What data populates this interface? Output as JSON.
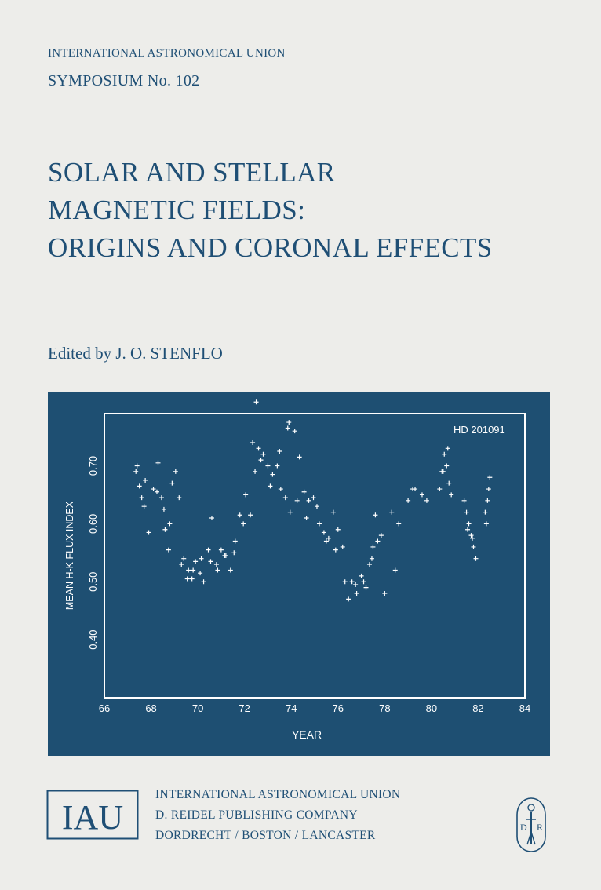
{
  "cover": {
    "series": "INTERNATIONAL ASTRONOMICAL UNION",
    "symposium": "SYMPOSIUM No. 102",
    "title_lines": [
      "SOLAR AND STELLAR",
      "MAGNETIC FIELDS:",
      "ORIGINS AND CORONAL EFFECTS"
    ],
    "editor": "Edited by J. O. STENFLO"
  },
  "publisher": {
    "lines": [
      "INTERNATIONAL ASTRONOMICAL UNION",
      "D. REIDEL PUBLISHING COMPANY",
      "DORDRECHT / BOSTON / LANCASTER"
    ],
    "iau_logo_text": "IAU",
    "reidel_logo_letters": [
      "D",
      "R"
    ]
  },
  "colors": {
    "text": "#1f4f75",
    "panel": "#1e4f72",
    "background": "#ededea",
    "plot_ink": "#ffffff"
  },
  "chart_data": {
    "type": "scatter",
    "annotation": "HD 201091",
    "xlabel": "YEAR",
    "ylabel": "MEAN H-K FLUX INDEX",
    "xlim": [
      66,
      84
    ],
    "ylim": [
      0.3,
      0.79
    ],
    "xticks": [
      "66",
      "68",
      "70",
      "72",
      "74",
      "76",
      "78",
      "80",
      "82",
      "84"
    ],
    "yticks": [
      "0.40",
      "0.50",
      "0.60",
      "0.70"
    ],
    "grid": false,
    "marker": "plus",
    "x": [
      67.35,
      67.5,
      67.6,
      67.75,
      67.9,
      68.1,
      68.3,
      68.45,
      68.6,
      68.75,
      68.9,
      69.05,
      69.2,
      69.4,
      69.6,
      69.75,
      69.9,
      70.1,
      70.25,
      70.45,
      70.6,
      70.8,
      71.0,
      71.2,
      71.4,
      71.6,
      71.8,
      72.05,
      72.25,
      72.45,
      72.6,
      72.8,
      73.0,
      73.2,
      73.4,
      73.55,
      73.75,
      73.95,
      74.15,
      74.35,
      74.55,
      74.75,
      74.95,
      75.2,
      75.4,
      75.6,
      75.8,
      76.0,
      76.2,
      76.45,
      76.6,
      76.8,
      77.0,
      77.2,
      77.35,
      77.5,
      77.7,
      78.0,
      78.3,
      78.6,
      79.0,
      79.3,
      79.6,
      79.8,
      80.35,
      80.45,
      80.55,
      80.65,
      80.75,
      80.85,
      81.4,
      81.5,
      81.6,
      81.7,
      81.8,
      81.9,
      82.3,
      82.4,
      82.5,
      67.4,
      67.7,
      68.25,
      68.55,
      68.8,
      69.3,
      69.55,
      69.8,
      70.15,
      70.55,
      70.85,
      71.15,
      71.55,
      71.95,
      72.35,
      72.7,
      73.1,
      73.5,
      73.85,
      74.25,
      74.65,
      75.1,
      75.5,
      75.9,
      76.3,
      76.75,
      77.1,
      77.45,
      77.85,
      78.45,
      79.2,
      80.5,
      80.7,
      81.55,
      81.75,
      82.35,
      82.45,
      72.5,
      73.9,
      77.6
    ],
    "y": [
      0.69,
      0.665,
      0.645,
      0.675,
      0.585,
      0.66,
      0.705,
      0.645,
      0.59,
      0.555,
      0.67,
      0.69,
      0.645,
      0.54,
      0.52,
      0.505,
      0.535,
      0.515,
      0.5,
      0.555,
      0.61,
      0.53,
      0.555,
      0.545,
      0.52,
      0.57,
      0.615,
      0.65,
      0.615,
      0.69,
      0.73,
      0.72,
      0.7,
      0.685,
      0.7,
      0.66,
      0.645,
      0.62,
      0.76,
      0.715,
      0.655,
      0.64,
      0.645,
      0.6,
      0.585,
      0.575,
      0.62,
      0.59,
      0.56,
      0.47,
      0.5,
      0.48,
      0.51,
      0.49,
      0.53,
      0.56,
      0.57,
      0.48,
      0.62,
      0.6,
      0.64,
      0.66,
      0.65,
      0.64,
      0.66,
      0.69,
      0.72,
      0.7,
      0.67,
      0.65,
      0.64,
      0.62,
      0.6,
      0.58,
      0.56,
      0.54,
      0.62,
      0.64,
      0.68,
      0.7,
      0.63,
      0.655,
      0.625,
      0.6,
      0.53,
      0.505,
      0.52,
      0.54,
      0.535,
      0.52,
      0.545,
      0.55,
      0.6,
      0.74,
      0.71,
      0.665,
      0.725,
      0.765,
      0.64,
      0.61,
      0.63,
      0.57,
      0.555,
      0.5,
      0.495,
      0.5,
      0.54,
      0.58,
      0.52,
      0.66,
      0.69,
      0.73,
      0.59,
      0.575,
      0.6,
      0.66,
      0.81,
      0.775,
      0.615
    ]
  }
}
